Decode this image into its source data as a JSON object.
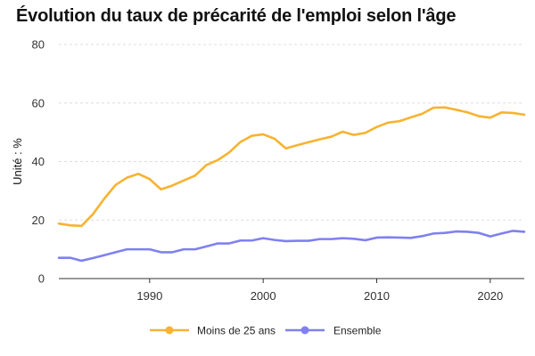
{
  "chart_data": {
    "type": "line",
    "title": "Évolution du taux de précarité de l'emploi selon l'âge",
    "xlabel": "",
    "ylabel": "Unité : %",
    "xlim": [
      1982,
      2023
    ],
    "ylim": [
      0,
      80
    ],
    "yticks": [
      0,
      20,
      40,
      60,
      80
    ],
    "xticks": [
      1990,
      2000,
      2010,
      2020
    ],
    "grid": true,
    "legend_position": "bottom",
    "series": [
      {
        "name": "Moins de 25 ans",
        "color": "#f7b330",
        "x": [
          1982,
          1983,
          1984,
          1985,
          1986,
          1987,
          1988,
          1989,
          1990,
          1991,
          1992,
          1993,
          1994,
          1995,
          1996,
          1997,
          1998,
          1999,
          2000,
          2001,
          2002,
          2003,
          2004,
          2005,
          2006,
          2007,
          2008,
          2009,
          2010,
          2011,
          2012,
          2013,
          2014,
          2015,
          2016,
          2017,
          2018,
          2019,
          2020,
          2021,
          2022,
          2023
        ],
        "values": [
          18.8,
          18.2,
          18.0,
          22.0,
          27.3,
          32.0,
          34.5,
          35.8,
          34.0,
          30.5,
          31.8,
          33.5,
          35.2,
          38.8,
          40.5,
          43.1,
          46.7,
          48.8,
          49.3,
          47.8,
          44.5,
          45.6,
          46.6,
          47.6,
          48.5,
          50.2,
          49.1,
          49.8,
          51.8,
          53.3,
          53.8,
          55.1,
          56.3,
          58.4,
          58.5,
          57.7,
          56.8,
          55.5,
          55.0,
          56.8,
          56.6,
          56.0
        ]
      },
      {
        "name": "Ensemble",
        "color": "#8080f0",
        "x": [
          1982,
          1983,
          1984,
          1985,
          1986,
          1987,
          1988,
          1989,
          1990,
          1991,
          1992,
          1993,
          1994,
          1995,
          1996,
          1997,
          1998,
          1999,
          2000,
          2001,
          2002,
          2003,
          2004,
          2005,
          2006,
          2007,
          2008,
          2009,
          2010,
          2011,
          2012,
          2013,
          2014,
          2015,
          2016,
          2017,
          2018,
          2019,
          2020,
          2021,
          2022,
          2023
        ],
        "values": [
          7.1,
          7.1,
          6.1,
          7.0,
          8.0,
          9.0,
          10.0,
          10.0,
          10.0,
          9.0,
          9.0,
          10.0,
          10.0,
          11.0,
          12.0,
          12.0,
          13.0,
          13.0,
          13.8,
          13.2,
          12.8,
          12.9,
          12.9,
          13.5,
          13.5,
          13.8,
          13.6,
          13.1,
          14.0,
          14.1,
          14.0,
          13.9,
          14.5,
          15.4,
          15.6,
          16.1,
          16.0,
          15.6,
          14.4,
          15.4,
          16.3,
          16.0
        ]
      }
    ]
  }
}
